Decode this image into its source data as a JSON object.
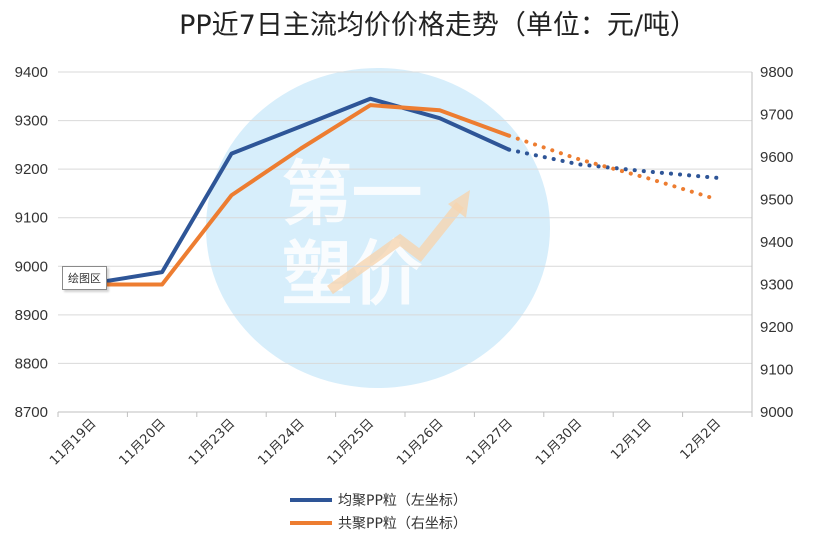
{
  "chart_data": {
    "type": "line",
    "title": "PP近7日主流均价价格走势（单位：元/吨）",
    "categories": [
      "11月19日",
      "11月20日",
      "11月23日",
      "11月24日",
      "11月25日",
      "11月26日",
      "11月27日",
      "11月30日",
      "12月1日",
      "12月2日"
    ],
    "y_left": {
      "min": 8700,
      "max": 9400,
      "step": 100
    },
    "y_right": {
      "min": 9000,
      "max": 9800,
      "step": 100
    },
    "series": [
      {
        "name": "均聚PP粒（左坐标）",
        "axis": "left",
        "color": "#2e5597",
        "values": [
          8965,
          8988,
          9232,
          9288,
          9345,
          9305,
          9240,
          null,
          null,
          null
        ],
        "forecast": [
          null,
          null,
          null,
          null,
          null,
          null,
          9240,
          9210,
          9195,
          9182
        ]
      },
      {
        "name": "共聚PP粒（右坐标）",
        "axis": "right",
        "color": "#ed7d31",
        "values": [
          9300,
          9300,
          9510,
          9620,
          9722,
          9710,
          9650,
          null,
          null,
          null
        ],
        "forecast": [
          null,
          null,
          null,
          null,
          null,
          null,
          9650,
          9595,
          9550,
          9500
        ]
      }
    ],
    "legend_position": "bottom"
  },
  "watermark": {
    "line1": "第一",
    "line2": "塑价"
  },
  "tooltip": "绘图区"
}
